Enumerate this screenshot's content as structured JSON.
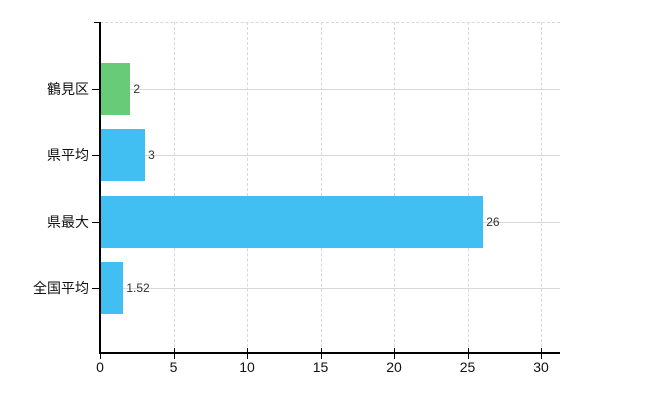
{
  "chart_data": {
    "type": "bar",
    "orientation": "horizontal",
    "title": "",
    "xlabel": "",
    "ylabel": "",
    "categories": [
      "鶴見区",
      "県平均",
      "県最大",
      "全国平均"
    ],
    "values": [
      2,
      3,
      26,
      1.52
    ],
    "value_labels": [
      "2",
      "3",
      "26",
      "1.52"
    ],
    "bar_colors": [
      "#67cb77",
      "#41bef2",
      "#41bef2",
      "#41bef2"
    ],
    "xlim": [
      0,
      30
    ],
    "x_ticks": [
      0,
      5,
      10,
      15,
      20,
      25,
      30
    ],
    "grid": true,
    "legend": false,
    "background_color": "#ffffff",
    "axis_color": "#000000",
    "grid_color": "#d8d8d8",
    "category_label_color": "#111111",
    "value_label_color": "#333333"
  }
}
